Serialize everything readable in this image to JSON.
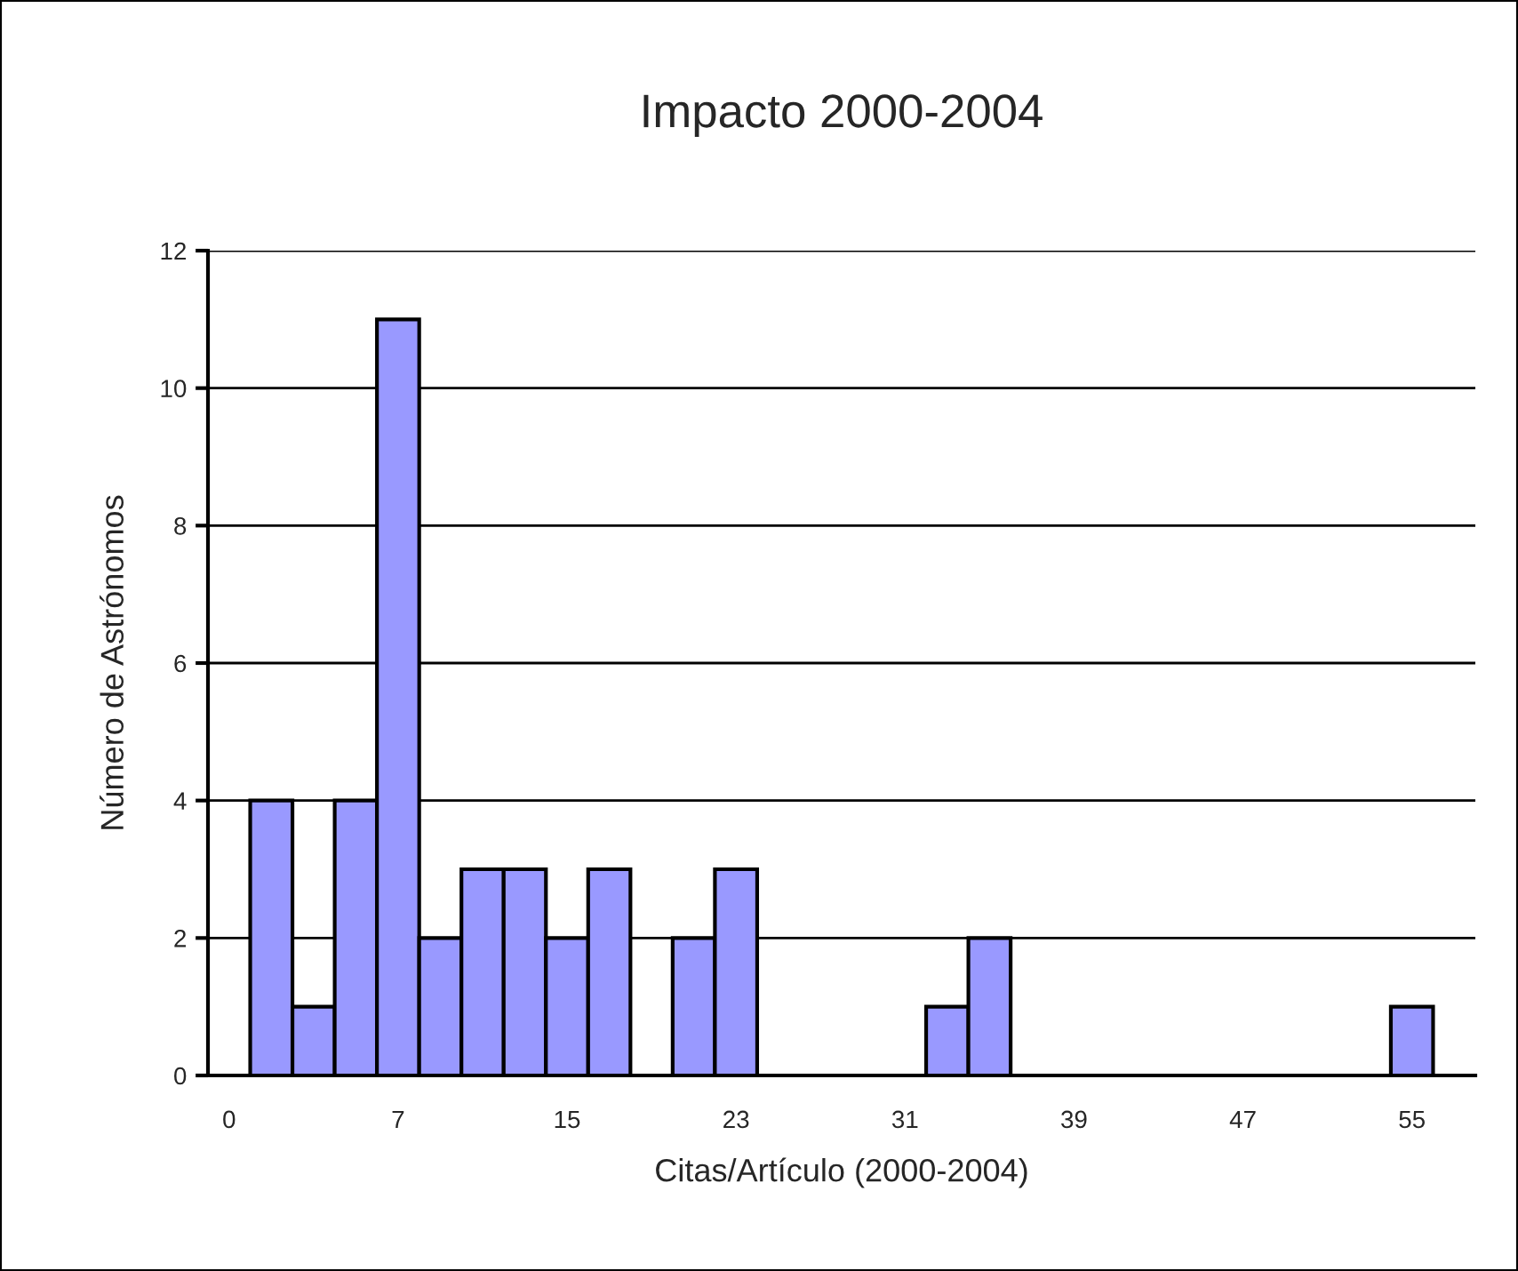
{
  "chart_data": {
    "type": "bar",
    "title": "Impacto 2000-2004",
    "xlabel": "Citas/Artículo (2000-2004)",
    "ylabel": "Número de Astrónomos",
    "categories": [
      "0",
      null,
      null,
      null,
      "7",
      null,
      null,
      null,
      "15",
      null,
      null,
      null,
      "23",
      null,
      null,
      null,
      "31",
      null,
      null,
      null,
      "39",
      null,
      null,
      null,
      "47",
      null,
      null,
      null,
      "55",
      null
    ],
    "values": [
      0,
      4,
      1,
      4,
      11,
      2,
      3,
      3,
      2,
      3,
      0,
      2,
      3,
      0,
      0,
      0,
      0,
      1,
      2,
      0,
      0,
      0,
      0,
      0,
      0,
      0,
      0,
      0,
      1,
      0
    ],
    "color": "#9999ff",
    "ylim": [
      0,
      12
    ],
    "yticks": [
      0,
      2,
      4,
      6,
      8,
      10,
      12
    ],
    "grid": "y"
  }
}
